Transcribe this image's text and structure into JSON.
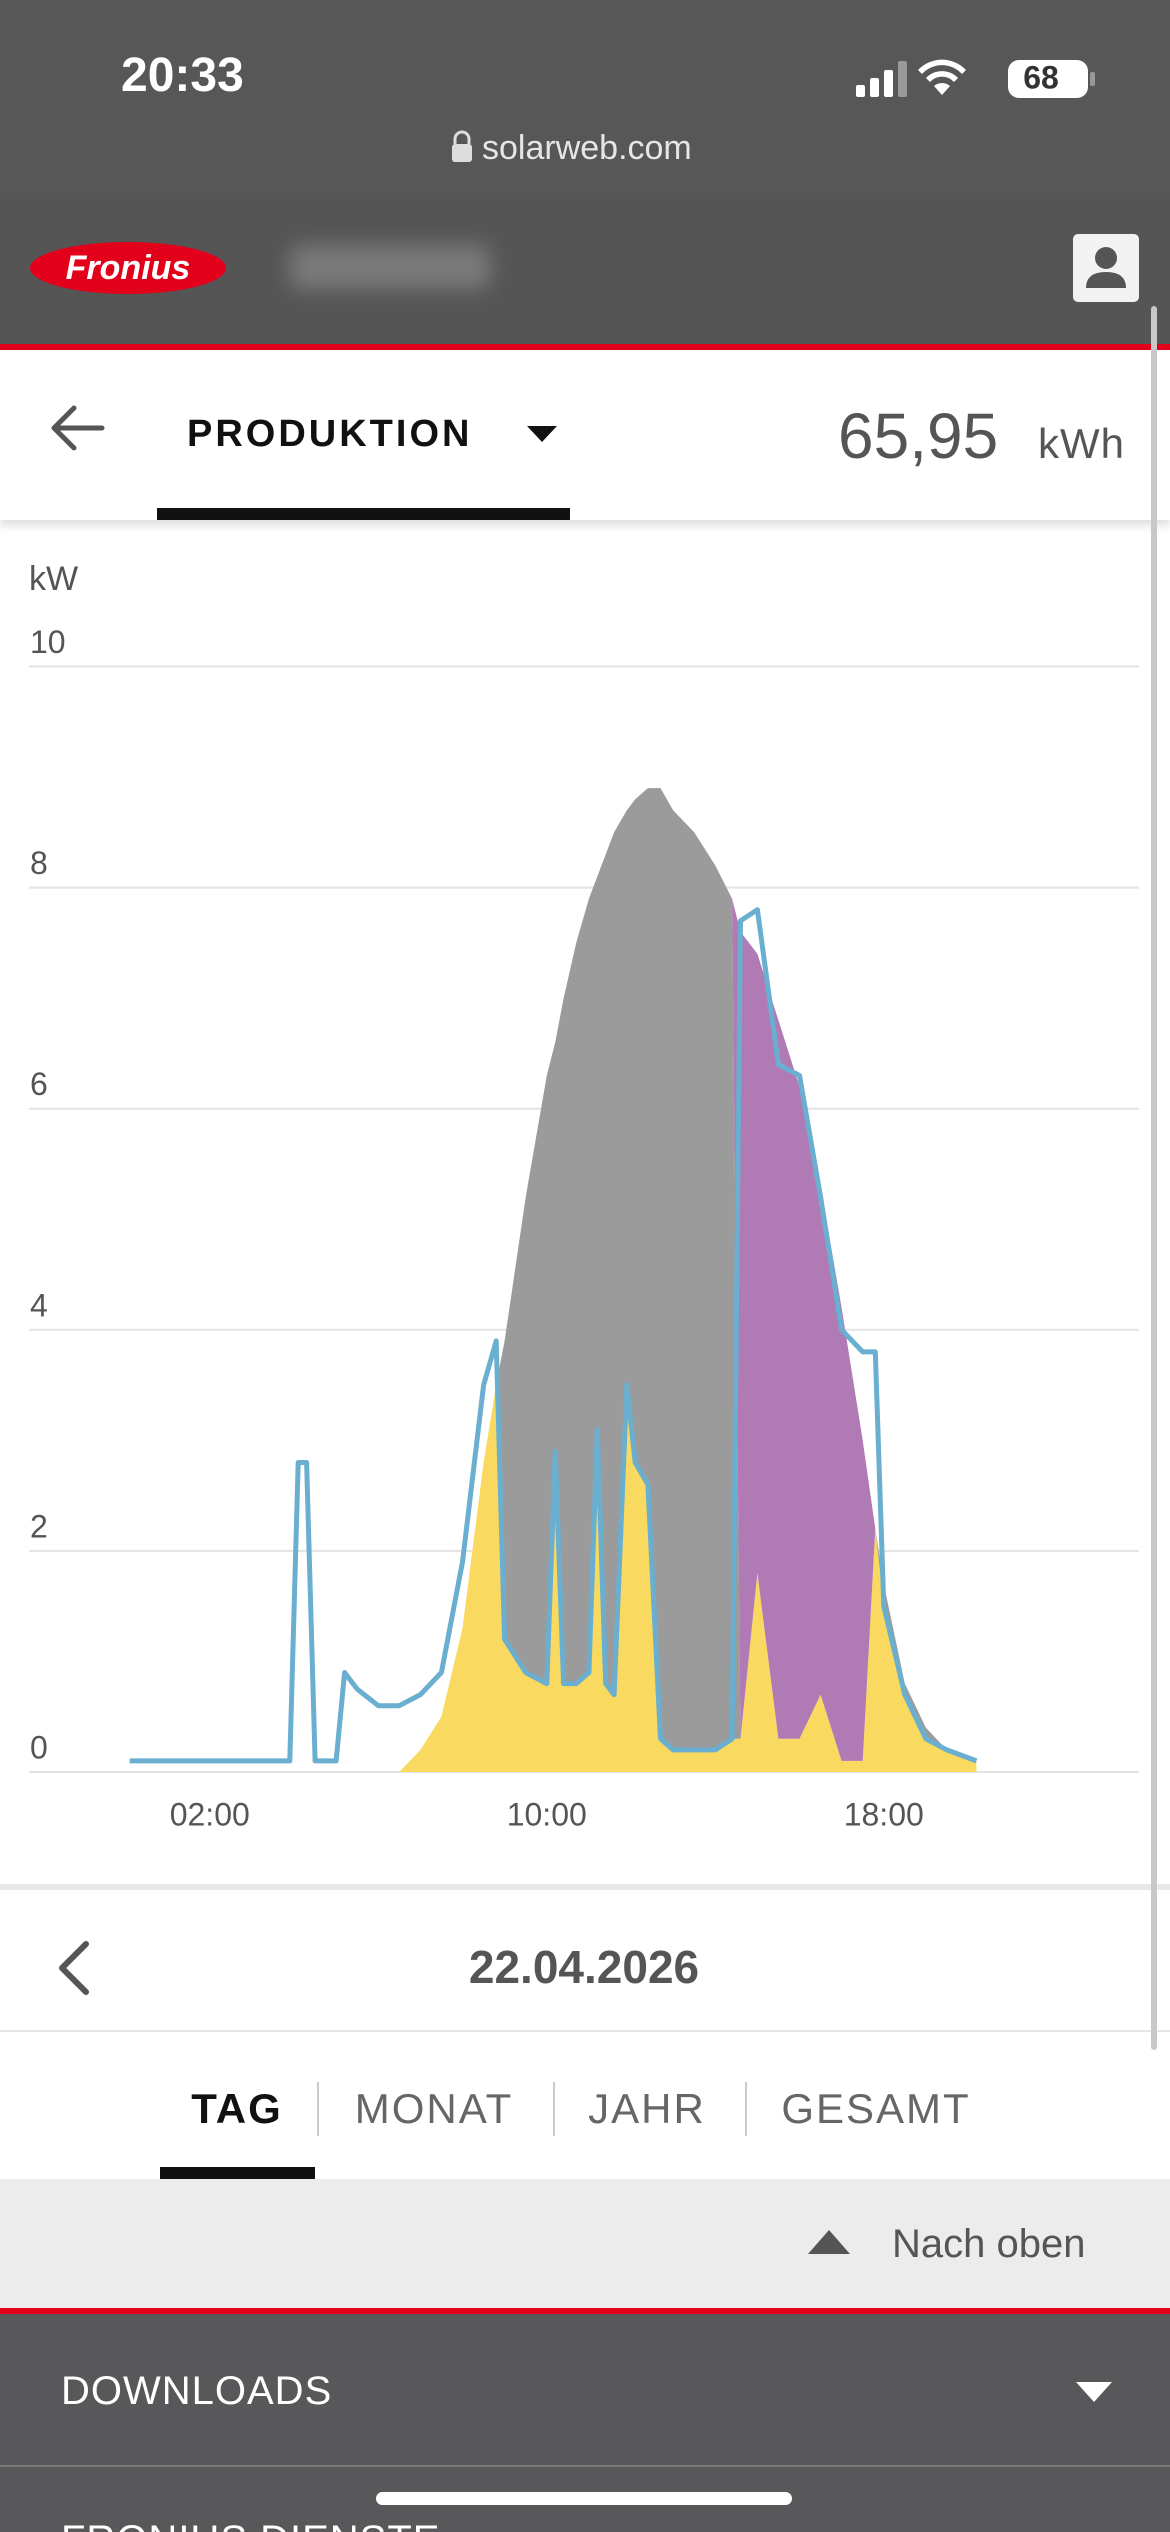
{
  "status_bar": {
    "time": "20:33",
    "battery": "68",
    "url": "solarweb.com"
  },
  "header": {
    "logo": "Fronius",
    "tab": "PRODUKTION",
    "total": "65,95",
    "unit": "kWh"
  },
  "chart_data": {
    "type": "area",
    "y_label": "kW",
    "stacked": true,
    "grid": true,
    "x": [
      0.1,
      1,
      2,
      3,
      3.9,
      4.1,
      4.3,
      4.5,
      5.0,
      5.2,
      5.5,
      6,
      6.5,
      7,
      7.5,
      8,
      8.5,
      8.8,
      9,
      9.5,
      10,
      10.2,
      10.4,
      10.7,
      11,
      11.2,
      11.4,
      11.6,
      11.9,
      12.1,
      12.4,
      12.7,
      13,
      13.5,
      14,
      14.4,
      14.6,
      15,
      15.5,
      16,
      16.5,
      17,
      17.5,
      17.8,
      18,
      18.5,
      19,
      19.5,
      20.2
    ],
    "series": [
      {
        "type": "area",
        "color": "#f9d95f",
        "values": [
          0,
          0,
          0,
          0,
          0,
          0,
          0,
          0,
          0,
          0,
          0,
          0,
          0,
          0.2,
          0.5,
          1.3,
          2.8,
          3.5,
          1.2,
          0.9,
          0.8,
          2.9,
          0.8,
          0.8,
          0.9,
          3.1,
          0.8,
          0.7,
          3.5,
          2.8,
          2.6,
          0.3,
          0.2,
          0.2,
          0.2,
          0.3,
          0.3,
          1.8,
          0.3,
          0.3,
          0.7,
          0.1,
          0.1,
          2.2,
          1.5,
          0.7,
          0.3,
          0.2,
          0.1
        ]
      },
      {
        "type": "area",
        "color": "#9b9b9b",
        "values": [
          0,
          0,
          0,
          0,
          0,
          0,
          0,
          0,
          0,
          0,
          0,
          0,
          0,
          0,
          0,
          0,
          0,
          0,
          2.7,
          4.3,
          5.5,
          3.7,
          6.2,
          6.7,
          7.0,
          5.0,
          7.5,
          7.8,
          5.2,
          6.0,
          6.3,
          8.6,
          8.5,
          8.3,
          8.0,
          7.6,
          0,
          0,
          0,
          0,
          0,
          0,
          0,
          0,
          0.2,
          0.1,
          0.1,
          0,
          0
        ]
      },
      {
        "type": "area",
        "color": "#b07ab5",
        "values": [
          0,
          0,
          0,
          0,
          0,
          0,
          0,
          0,
          0,
          0,
          0,
          0,
          0,
          0,
          0,
          0,
          0,
          0,
          0,
          0,
          0,
          0,
          0,
          0,
          0,
          0,
          0,
          0,
          0,
          0,
          0,
          0,
          0,
          0,
          0,
          0,
          7.3,
          5.6,
          6.5,
          5.9,
          4.6,
          4.1,
          2.9,
          0,
          0,
          0,
          0,
          0,
          0
        ]
      },
      {
        "type": "line",
        "color": "#6aaed0",
        "values": [
          0.1,
          0.1,
          0.1,
          0.1,
          0.1,
          2.8,
          2.8,
          0.1,
          0.1,
          0.9,
          0.75,
          0.6,
          0.6,
          0.7,
          0.9,
          1.9,
          3.5,
          3.9,
          1.2,
          0.9,
          0.8,
          2.9,
          0.8,
          0.8,
          0.9,
          3.1,
          0.8,
          0.7,
          3.5,
          2.8,
          2.6,
          0.3,
          0.2,
          0.2,
          0.2,
          0.3,
          7.7,
          7.8,
          6.4,
          6.3,
          5.2,
          4.0,
          3.8,
          3.8,
          1.5,
          0.7,
          0.3,
          0.2,
          0.1
        ]
      }
    ],
    "xlim": [
      0,
      24
    ],
    "xticks": [
      {
        "value": 2,
        "label": "02:00"
      },
      {
        "value": 10,
        "label": "10:00"
      },
      {
        "value": 18,
        "label": "18:00"
      }
    ],
    "ylim": [
      0,
      10
    ],
    "yticks": [
      0,
      2,
      4,
      6,
      8,
      10
    ]
  },
  "date_nav": {
    "date": "22.04.2026"
  },
  "period_tabs": {
    "items": [
      "TAG",
      "MONAT",
      "JAHR",
      "GESAMT"
    ],
    "active": 0
  },
  "back_to_top": "Nach oben",
  "footer": {
    "items": [
      "DOWNLOADS",
      "FRONIUS DIENSTE"
    ]
  }
}
